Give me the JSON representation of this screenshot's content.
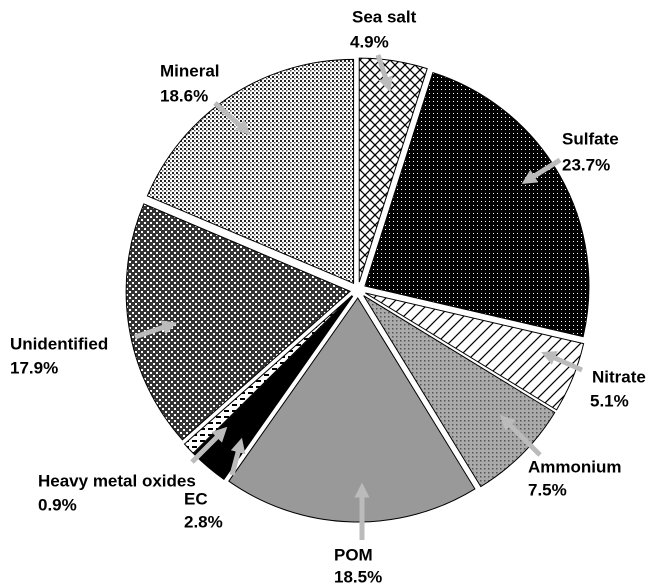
{
  "chart_data": {
    "type": "pie",
    "categories": [
      "Sea salt",
      "Sulfate",
      "Nitrate",
      "Ammonium",
      "POM",
      "EC",
      "Heavy metal oxides",
      "Unidentified",
      "Mineral"
    ],
    "values": [
      4.9,
      23.7,
      5.1,
      7.5,
      18.5,
      2.8,
      0.9,
      17.9,
      18.6
    ],
    "value_labels": [
      "4.9%",
      "23.7%",
      "5.1%",
      "7.5%",
      "18.5%",
      "2.8%",
      "0.9%",
      "17.9%",
      "18.6%"
    ]
  }
}
